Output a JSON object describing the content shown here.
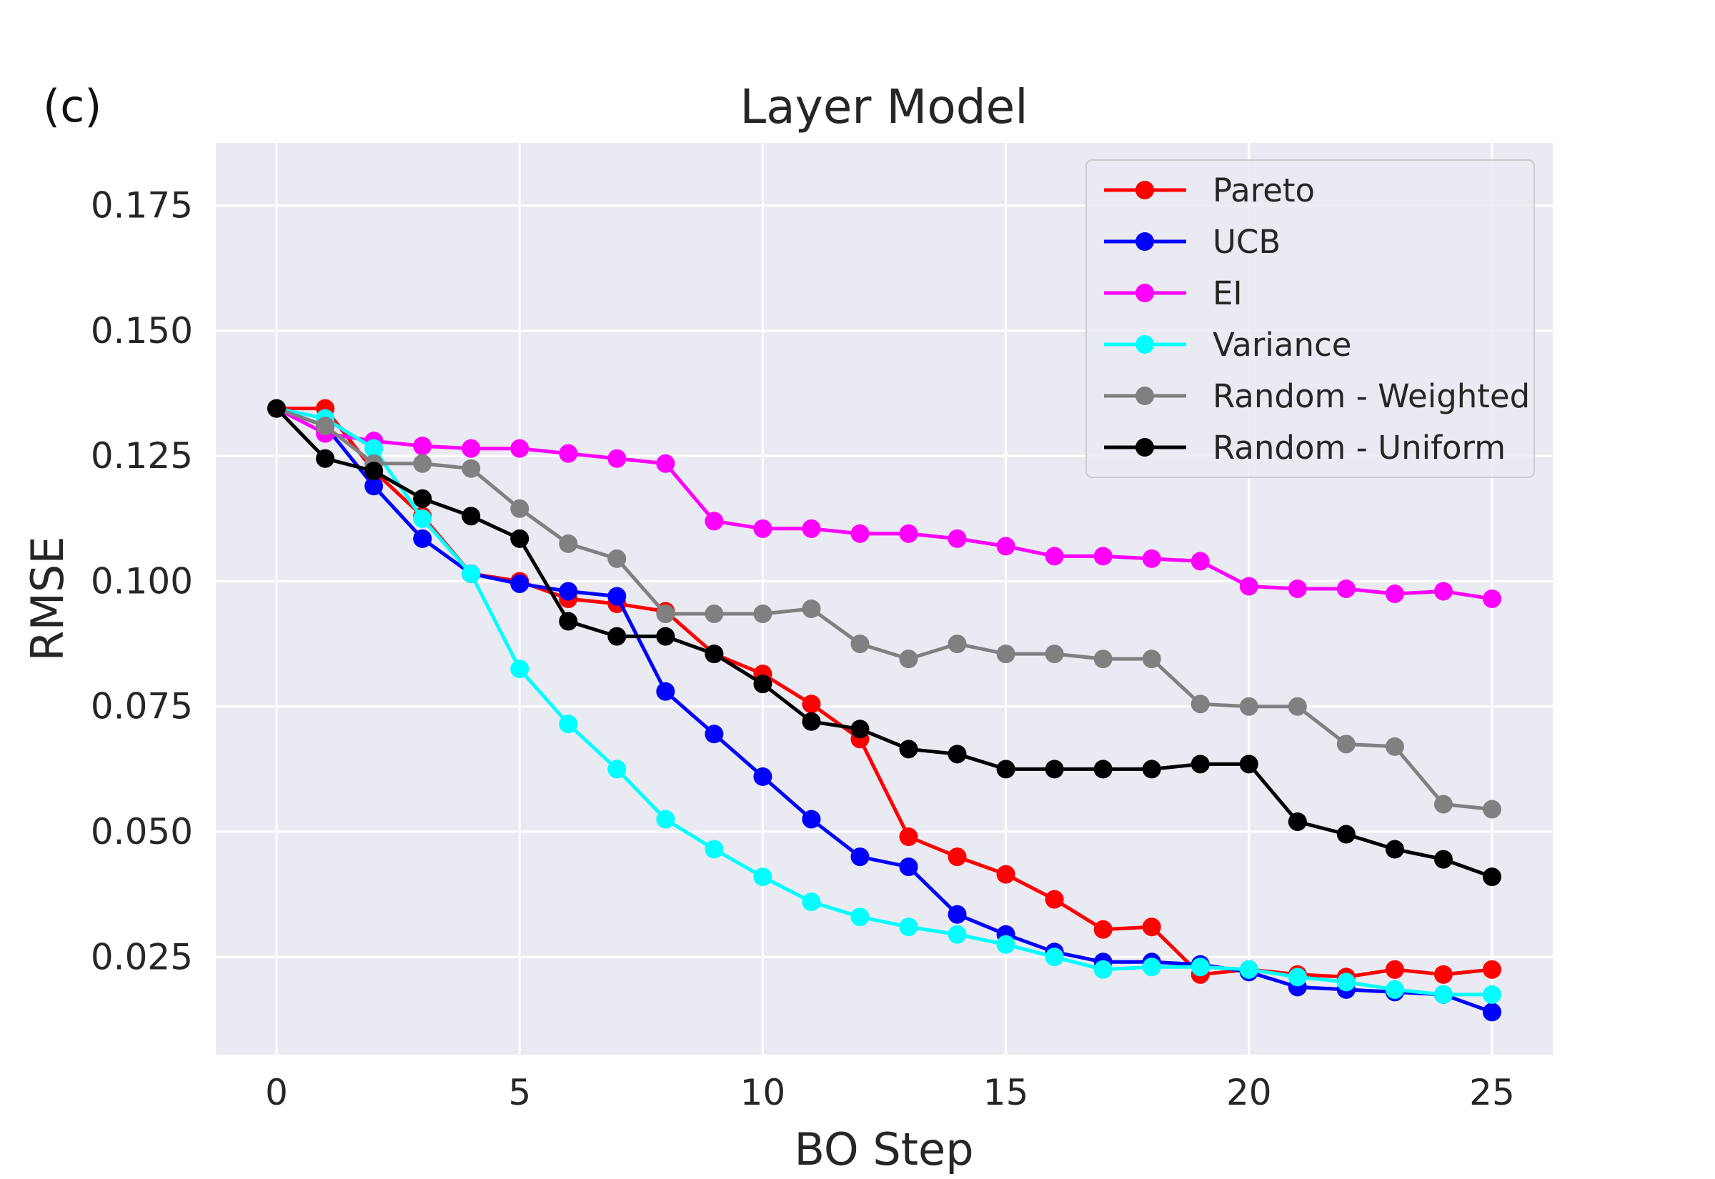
{
  "chart_data": {
    "type": "line",
    "panel_label": "(c)",
    "title": "Layer Model",
    "xlabel": "BO Step",
    "ylabel": "RMSE",
    "xlim": [
      -1.25,
      26.25
    ],
    "ylim": [
      0.0055,
      0.1875
    ],
    "xticks": [
      0,
      5,
      10,
      15,
      20,
      25
    ],
    "xtick_labels": [
      "0",
      "5",
      "10",
      "15",
      "20",
      "25"
    ],
    "yticks": [
      0.025,
      0.05,
      0.075,
      0.1,
      0.125,
      0.15,
      0.175
    ],
    "ytick_labels": [
      "0.025",
      "0.050",
      "0.075",
      "0.100",
      "0.125",
      "0.150",
      "0.175"
    ],
    "grid": true,
    "legend_position": "top-right",
    "x": [
      0,
      1,
      2,
      3,
      4,
      5,
      6,
      7,
      8,
      9,
      10,
      11,
      12,
      13,
      14,
      15,
      16,
      17,
      18,
      19,
      20,
      21,
      22,
      23,
      24,
      25
    ],
    "series": [
      {
        "name": "Pareto",
        "color": "#ff0000",
        "values": [
          0.1345,
          0.1345,
          0.122,
          0.113,
          0.1015,
          0.1,
          0.0965,
          0.0955,
          0.094,
          0.0855,
          0.0815,
          0.0755,
          0.0685,
          0.049,
          0.045,
          0.0415,
          0.0365,
          0.0305,
          0.031,
          0.0215,
          0.0225,
          0.0215,
          0.021,
          0.0225,
          0.0215,
          0.0225
        ]
      },
      {
        "name": "UCB",
        "color": "#0000ff",
        "values": [
          0.1345,
          0.131,
          0.119,
          0.1085,
          0.1015,
          0.0995,
          0.098,
          0.097,
          0.078,
          0.0695,
          0.061,
          0.0525,
          0.045,
          0.043,
          0.0335,
          0.0295,
          0.026,
          0.024,
          0.024,
          0.0235,
          0.022,
          0.019,
          0.0185,
          0.018,
          0.0175,
          0.014
        ]
      },
      {
        "name": "EI",
        "color": "#ff00ff",
        "values": [
          0.1345,
          0.1295,
          0.128,
          0.127,
          0.1265,
          0.1265,
          0.1255,
          0.1245,
          0.1235,
          0.112,
          0.1105,
          0.1105,
          0.1095,
          0.1095,
          0.1085,
          0.107,
          0.105,
          0.105,
          0.1045,
          0.104,
          0.099,
          0.0985,
          0.0985,
          0.0975,
          0.098,
          0.0965
        ]
      },
      {
        "name": "Variance",
        "color": "#00ffff",
        "values": [
          0.1345,
          0.1325,
          0.1265,
          0.1125,
          0.1015,
          0.0825,
          0.0715,
          0.0625,
          0.0525,
          0.0465,
          0.041,
          0.036,
          0.033,
          0.031,
          0.0295,
          0.0275,
          0.025,
          0.0225,
          0.023,
          0.023,
          0.0225,
          0.021,
          0.02,
          0.0185,
          0.0175,
          0.0175
        ]
      },
      {
        "name": "Random - Weighted",
        "color": "#808080",
        "values": [
          0.1345,
          0.131,
          0.1235,
          0.1235,
          0.1225,
          0.1145,
          0.1075,
          0.1045,
          0.0935,
          0.0935,
          0.0935,
          0.0945,
          0.0875,
          0.0845,
          0.0875,
          0.0855,
          0.0855,
          0.0845,
          0.0845,
          0.0755,
          0.075,
          0.075,
          0.0675,
          0.067,
          0.0555,
          0.0545
        ]
      },
      {
        "name": "Random - Uniform",
        "color": "#000000",
        "values": [
          0.1345,
          0.1245,
          0.122,
          0.1165,
          0.113,
          0.1085,
          0.092,
          0.089,
          0.089,
          0.0855,
          0.0795,
          0.072,
          0.0705,
          0.0665,
          0.0655,
          0.0625,
          0.0625,
          0.0625,
          0.0625,
          0.0635,
          0.0635,
          0.052,
          0.0495,
          0.0465,
          0.0445,
          0.041
        ]
      }
    ]
  }
}
